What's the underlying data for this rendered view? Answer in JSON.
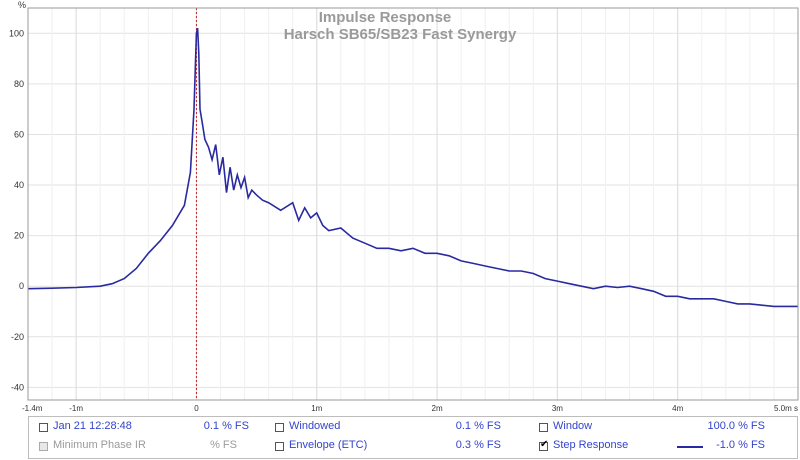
{
  "chart_data": {
    "type": "line",
    "title": "Impulse Response",
    "subtitle": "Harsch SB65/SB23 Fast Synergy",
    "ylabel": "%",
    "xlim": [
      -1.4,
      5.0
    ],
    "ylim": [
      -45,
      110
    ],
    "x_ticks": [
      {
        "v": -1.4,
        "label": "-1.4m"
      },
      {
        "v": -1.0,
        "label": "-1m"
      },
      {
        "v": 0,
        "label": "0"
      },
      {
        "v": 1.0,
        "label": "1m"
      },
      {
        "v": 2.0,
        "label": "2m"
      },
      {
        "v": 3.0,
        "label": "3m"
      },
      {
        "v": 4.0,
        "label": "4m"
      },
      {
        "v": 5.0,
        "label": "5.0m s"
      }
    ],
    "y_ticks": [
      {
        "v": 100,
        "label": "100"
      },
      {
        "v": 80,
        "label": "80"
      },
      {
        "v": 60,
        "label": "60"
      },
      {
        "v": 40,
        "label": "40"
      },
      {
        "v": 20,
        "label": "20"
      },
      {
        "v": 0,
        "label": "0"
      },
      {
        "v": -20,
        "label": "-20"
      },
      {
        "v": -40,
        "label": "-40"
      }
    ],
    "grid": true,
    "marker_x": 0,
    "series": [
      {
        "name": "Step Response",
        "color": "#2a2aa0",
        "x": [
          -1.4,
          -1.2,
          -1.0,
          -0.8,
          -0.7,
          -0.6,
          -0.5,
          -0.4,
          -0.3,
          -0.2,
          -0.1,
          -0.05,
          -0.02,
          0.0,
          0.01,
          0.02,
          0.03,
          0.05,
          0.07,
          0.1,
          0.13,
          0.16,
          0.19,
          0.22,
          0.25,
          0.28,
          0.31,
          0.34,
          0.37,
          0.4,
          0.43,
          0.46,
          0.5,
          0.55,
          0.6,
          0.7,
          0.8,
          0.85,
          0.9,
          0.95,
          1.0,
          1.05,
          1.1,
          1.2,
          1.3,
          1.4,
          1.5,
          1.6,
          1.7,
          1.8,
          1.9,
          2.0,
          2.1,
          2.2,
          2.3,
          2.4,
          2.5,
          2.6,
          2.7,
          2.8,
          2.9,
          3.0,
          3.1,
          3.2,
          3.3,
          3.4,
          3.5,
          3.6,
          3.7,
          3.8,
          3.9,
          4.0,
          4.1,
          4.2,
          4.3,
          4.4,
          4.5,
          4.6,
          4.7,
          4.8,
          4.9,
          5.0
        ],
        "y": [
          -1,
          -0.8,
          -0.5,
          0,
          1,
          3,
          7,
          13,
          18,
          24,
          32,
          45,
          70,
          100,
          102,
          92,
          70,
          64,
          58,
          55,
          50,
          56,
          44,
          51,
          37,
          47,
          38,
          44,
          39,
          43,
          35,
          38,
          36,
          34,
          33,
          30,
          33,
          26,
          31,
          27,
          29,
          24,
          22,
          23,
          19,
          17,
          15,
          15,
          14,
          15,
          13,
          13,
          12,
          10,
          9,
          8,
          7,
          6,
          6,
          5,
          3,
          2,
          1,
          0,
          -1,
          0,
          -0.5,
          0,
          -1,
          -2,
          -4,
          -4,
          -5,
          -5,
          -5,
          -6,
          -7,
          -7,
          -7.5,
          -8,
          -8,
          -8
        ]
      }
    ]
  },
  "legend": {
    "row1": [
      {
        "label": "Jan 21 12:28:48",
        "value": "0.1 % FS",
        "checked": false,
        "dim": false
      },
      {
        "label": "Windowed",
        "value": "0.1 % FS",
        "checked": false,
        "dim": false
      },
      {
        "label": "Window",
        "value": "100.0 % FS",
        "checked": false,
        "dim": false
      }
    ],
    "row2": [
      {
        "label": "Minimum Phase IR",
        "value": "% FS",
        "checked": false,
        "dim": true
      },
      {
        "label": "Envelope (ETC)",
        "value": "0.3 % FS",
        "checked": false,
        "dim": false
      },
      {
        "label": "Step Response",
        "value": "-1.0 % FS",
        "checked": true,
        "dim": false
      }
    ]
  }
}
